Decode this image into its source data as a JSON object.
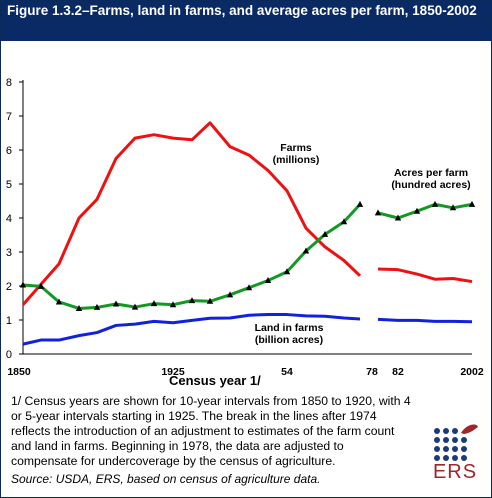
{
  "title": "Figure 1.3.2–Farms, land in farms, and average acres per farm, 1850-2002",
  "footnote": "1/ Census years are shown for 10-year intervals from 1850 to 1920, with 4 or 5-year intervals starting in 1925. The break in the lines after 1974 reflects the introduction of an adjustment to estimates of the farm count and land in farms. Beginning in 1978, the data are adjusted to compensate for undercoverage by the census of agriculture.",
  "source": "Source:  USDA, ERS, based on census of agriculture data.",
  "logo_text": "ERS",
  "colors": {
    "farms": "#ee1111",
    "land": "#1122dd",
    "acres": "#119922",
    "title_bg": "#0a2a66"
  },
  "chart_data": {
    "type": "line",
    "xlabel": "Census year 1/",
    "ylabel": "",
    "ylim": [
      0,
      8
    ],
    "yticks": [
      "0",
      "1",
      "2",
      "3",
      "4",
      "5",
      "6",
      "7",
      "8"
    ],
    "xtick_labels": [
      "1850",
      "1925",
      "54",
      "78",
      "82",
      "2002"
    ],
    "grid": false,
    "annotations": [
      {
        "lines": [
          "Farms",
          "(millions)"
        ],
        "series": "farms"
      },
      {
        "lines": [
          "Acres per farm",
          "(hundred acres)"
        ],
        "series": "acres"
      },
      {
        "lines": [
          "Land in farms",
          "(billion acres)"
        ],
        "series": "land"
      }
    ],
    "x": [
      1850,
      1860,
      1870,
      1880,
      1890,
      1900,
      1910,
      1920,
      1925,
      1930,
      1935,
      1940,
      1945,
      1950,
      1954,
      1959,
      1964,
      1969,
      1974,
      1978,
      1982,
      1987,
      1992,
      1997,
      2002
    ],
    "series": [
      {
        "key": "farms",
        "name": "Farms (millions)",
        "values": [
          1.45,
          2.05,
          2.65,
          4.0,
          4.55,
          5.75,
          6.35,
          6.45,
          6.35,
          6.3,
          6.8,
          6.1,
          5.85,
          5.4,
          4.8,
          3.7,
          3.15,
          2.75,
          2.3,
          2.5,
          2.48,
          2.35,
          2.2,
          2.22,
          2.13
        ]
      },
      {
        "key": "land",
        "name": "Land in farms (billion acres)",
        "values": [
          0.29,
          0.41,
          0.41,
          0.54,
          0.63,
          0.84,
          0.88,
          0.96,
          0.92,
          0.99,
          1.05,
          1.06,
          1.14,
          1.16,
          1.16,
          1.12,
          1.11,
          1.06,
          1.03,
          1.02,
          0.99,
          0.99,
          0.96,
          0.96,
          0.95
        ]
      },
      {
        "key": "acres",
        "name": "Acres per farm (hundred acres)",
        "values": [
          2.03,
          1.99,
          1.53,
          1.34,
          1.37,
          1.47,
          1.38,
          1.48,
          1.45,
          1.57,
          1.55,
          1.74,
          1.95,
          2.16,
          2.42,
          3.03,
          3.52,
          3.89,
          4.4,
          4.15,
          4.0,
          4.2,
          4.4,
          4.3,
          4.4
        ]
      }
    ]
  }
}
